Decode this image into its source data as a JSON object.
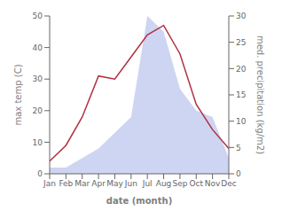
{
  "chart_data": {
    "type": "line",
    "categories": [
      "Jan",
      "Feb",
      "Mar",
      "Apr",
      "May",
      "Jun",
      "Jul",
      "Aug",
      "Sep",
      "Oct",
      "Nov",
      "Dec"
    ],
    "series": [
      {
        "type": "area",
        "color": "#c5cef0",
        "values": [
          2,
          2,
          5,
          8,
          13,
          18,
          50,
          45,
          27,
          20,
          18,
          5
        ]
      },
      {
        "type": "line",
        "color": "#b03040",
        "values": [
          4,
          9,
          18,
          31,
          30,
          37,
          44,
          47,
          38,
          22,
          14,
          8
        ]
      }
    ],
    "x_label": "date (month)",
    "y_label": "max temp (C)",
    "y2_label": "med. precipitation (kg/m2)",
    "ylim": [
      0,
      50
    ],
    "yticks": [
      0,
      10,
      20,
      30,
      40,
      50
    ],
    "y2lim": [
      0,
      30
    ],
    "y2ticks": [
      0,
      5,
      10,
      15,
      20,
      25,
      30
    ],
    "grid": false
  }
}
